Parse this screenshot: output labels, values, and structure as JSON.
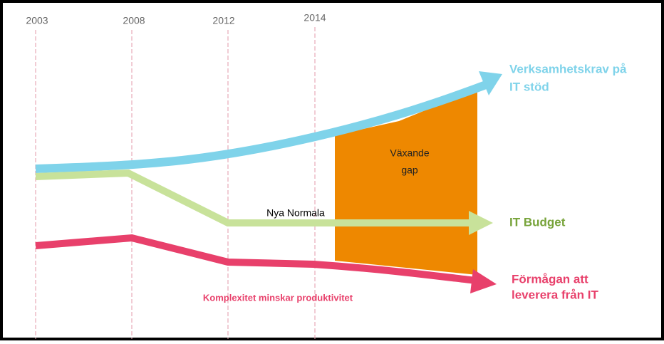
{
  "years": [
    "2003",
    "2008",
    "2012",
    "2014"
  ],
  "curves": {
    "demand": {
      "label": [
        "Verksamhetskrav på",
        "IT stöd"
      ]
    },
    "budget": {
      "label": [
        "IT Budget"
      ]
    },
    "capability": {
      "label": [
        "Förmågan att",
        "leverera från IT"
      ]
    }
  },
  "gap": {
    "label": [
      "Växande",
      "gap"
    ]
  },
  "annotations": {
    "new_normal": "Nya Normala",
    "complexity": "Komplexitet minskar produktivitet"
  }
}
